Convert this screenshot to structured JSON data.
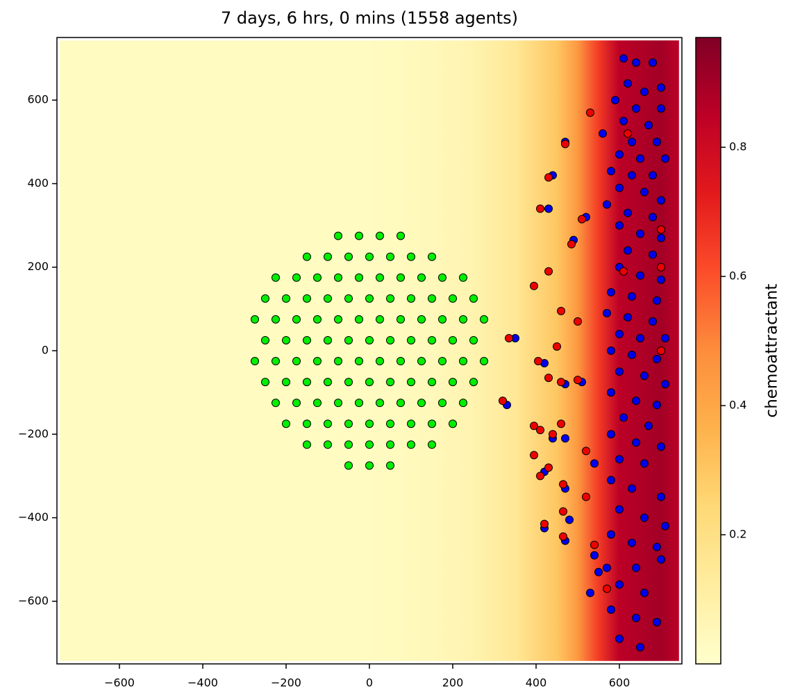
{
  "chart_data": {
    "type": "scatter",
    "title": "7 days, 6 hrs, 0 mins (1558 agents)",
    "xlim": [
      -750,
      750
    ],
    "ylim": [
      -750,
      750
    ],
    "xticks": [
      {
        "value": -600,
        "label": "−600"
      },
      {
        "value": -400,
        "label": "−400"
      },
      {
        "value": -200,
        "label": "−200"
      },
      0,
      200,
      400,
      600
    ],
    "yticks": [
      {
        "value": -600,
        "label": "−600"
      },
      {
        "value": -400,
        "label": "−400"
      },
      {
        "value": -200,
        "label": "−200"
      },
      0,
      200,
      400,
      600
    ],
    "field": {
      "extent": [
        -743,
        743
      ],
      "x": [
        -743,
        0,
        150,
        250,
        350,
        450,
        500,
        550,
        600,
        700,
        743
      ],
      "values": [
        0.03,
        0.03,
        0.05,
        0.08,
        0.15,
        0.3,
        0.45,
        0.65,
        0.85,
        0.9,
        0.85
      ]
    },
    "colormap": [
      "#ffffcc",
      "#ffeda0",
      "#fed976",
      "#feb24c",
      "#fd8d3c",
      "#fc4e2a",
      "#e31a1c",
      "#bd0026",
      "#800026"
    ],
    "colorbar": {
      "label": "chemoattractant",
      "lim": [
        0,
        0.97
      ],
      "ticks": [
        0.2,
        0.4,
        0.6,
        0.8
      ]
    },
    "series": [
      {
        "color": "#00ee00",
        "x": [
          -75,
          -25,
          25,
          75,
          -150,
          -100,
          -50,
          0,
          50,
          100,
          150,
          -225,
          -175,
          -125,
          -75,
          -25,
          25,
          75,
          125,
          175,
          225,
          -250,
          -200,
          -150,
          -100,
          -50,
          0,
          50,
          100,
          150,
          200,
          250,
          -275,
          -225,
          -175,
          -125,
          -75,
          -25,
          25,
          75,
          125,
          175,
          225,
          275,
          -250,
          -200,
          -150,
          -100,
          -50,
          0,
          50,
          100,
          150,
          200,
          250,
          -275,
          -225,
          -175,
          -125,
          -75,
          -25,
          25,
          75,
          125,
          175,
          225,
          275,
          -250,
          -200,
          -150,
          -100,
          -50,
          0,
          50,
          100,
          150,
          200,
          250,
          -225,
          -175,
          -125,
          -75,
          -25,
          25,
          75,
          125,
          175,
          225,
          -200,
          -150,
          -100,
          -50,
          0,
          50,
          100,
          150,
          200,
          -150,
          -100,
          -50,
          0,
          50,
          100,
          150,
          -50,
          0,
          50
        ],
        "y": [
          275,
          275,
          275,
          275,
          225,
          225,
          225,
          225,
          225,
          225,
          225,
          175,
          175,
          175,
          175,
          175,
          175,
          175,
          175,
          175,
          175,
          125,
          125,
          125,
          125,
          125,
          125,
          125,
          125,
          125,
          125,
          125,
          75,
          75,
          75,
          75,
          75,
          75,
          75,
          75,
          75,
          75,
          75,
          75,
          25,
          25,
          25,
          25,
          25,
          25,
          25,
          25,
          25,
          25,
          25,
          -25,
          -25,
          -25,
          -25,
          -25,
          -25,
          -25,
          -25,
          -25,
          -25,
          -25,
          -25,
          -75,
          -75,
          -75,
          -75,
          -75,
          -75,
          -75,
          -75,
          -75,
          -75,
          -75,
          -125,
          -125,
          -125,
          -125,
          -125,
          -125,
          -125,
          -125,
          -125,
          -125,
          -175,
          -175,
          -175,
          -175,
          -175,
          -175,
          -175,
          -175,
          -175,
          -225,
          -225,
          -225,
          -225,
          -225,
          -225,
          -225,
          -275,
          -275,
          -275
        ]
      },
      {
        "color": "#0000ee",
        "x": [
          610,
          640,
          680,
          700,
          620,
          660,
          590,
          640,
          700,
          610,
          670,
          560,
          630,
          690,
          600,
          650,
          710,
          580,
          630,
          680,
          600,
          660,
          700,
          570,
          620,
          680,
          600,
          650,
          700,
          620,
          680,
          600,
          650,
          700,
          580,
          630,
          690,
          570,
          620,
          680,
          600,
          650,
          710,
          580,
          630,
          690,
          600,
          660,
          710,
          580,
          640,
          690,
          610,
          670,
          580,
          640,
          700,
          600,
          660,
          580,
          630,
          700,
          600,
          660,
          710,
          580,
          630,
          690,
          570,
          640,
          700,
          600,
          660,
          580,
          640,
          690,
          600,
          650,
          470,
          440,
          430,
          520,
          490,
          350,
          420,
          470,
          510,
          330,
          440,
          470,
          540,
          420,
          470,
          480,
          420,
          470,
          540,
          550,
          530
        ],
        "y": [
          700,
          690,
          690,
          630,
          640,
          620,
          600,
          580,
          580,
          550,
          540,
          520,
          500,
          500,
          470,
          460,
          460,
          430,
          420,
          420,
          390,
          380,
          360,
          350,
          330,
          320,
          300,
          280,
          270,
          240,
          230,
          200,
          180,
          170,
          140,
          130,
          120,
          90,
          80,
          70,
          40,
          30,
          30,
          0,
          -10,
          -20,
          -50,
          -60,
          -80,
          -100,
          -120,
          -130,
          -160,
          -180,
          -200,
          -220,
          -230,
          -260,
          -270,
          -310,
          -330,
          -350,
          -380,
          -400,
          -420,
          -440,
          -460,
          -470,
          -520,
          -520,
          -500,
          -560,
          -580,
          -620,
          -640,
          -650,
          -690,
          -710,
          500,
          420,
          340,
          320,
          265,
          30,
          -30,
          -80,
          -75,
          -130,
          -210,
          -210,
          -270,
          -290,
          -330,
          -405,
          -425,
          -455,
          -490,
          -530,
          -580
        ]
      },
      {
        "color": "#ee0000",
        "x": [
          530,
          470,
          430,
          410,
          510,
          430,
          395,
          485,
          460,
          500,
          450,
          335,
          405,
          430,
          460,
          500,
          320,
          395,
          410,
          440,
          460,
          395,
          430,
          410,
          465,
          465,
          420,
          465,
          520,
          540,
          570,
          610,
          700,
          620,
          700,
          700,
          520
        ],
        "y": [
          570,
          495,
          415,
          340,
          315,
          190,
          155,
          255,
          95,
          70,
          10,
          30,
          -25,
          -65,
          -75,
          -70,
          -120,
          -180,
          -190,
          -200,
          -175,
          -250,
          -280,
          -300,
          -320,
          -385,
          -415,
          -445,
          -350,
          -465,
          -570,
          190,
          290,
          520,
          200,
          0,
          -240
        ]
      }
    ]
  }
}
